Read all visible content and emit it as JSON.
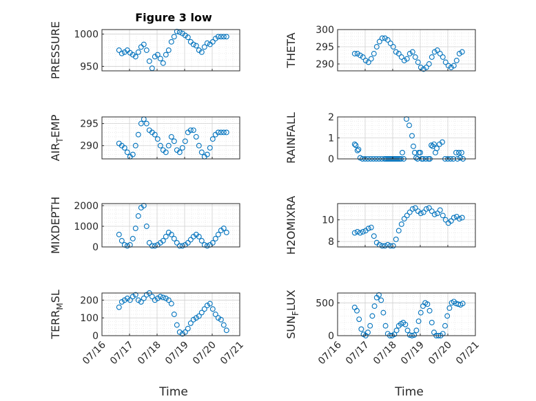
{
  "figure": {
    "title": "Figure 3 low",
    "xlabel": "Time"
  },
  "colors": {
    "marker": "#0072BD",
    "axis": "#262626",
    "grid": "#d0d0d0"
  },
  "chart_data": [
    {
      "type": "scatter",
      "ylabel": "PRESSURE",
      "ylim": [
        943,
        1007
      ],
      "yticks": [
        950,
        1000
      ],
      "xlim": [
        "07/16",
        "07/21"
      ],
      "xticks": [
        "07/16",
        "07/17",
        "07/18",
        "07/19",
        "07/20",
        "07/21"
      ],
      "grid": true,
      "x": [
        16.62,
        16.72,
        16.82,
        16.92,
        17.02,
        17.12,
        17.22,
        17.32,
        17.42,
        17.52,
        17.62,
        17.72,
        17.82,
        17.92,
        18.02,
        18.12,
        18.22,
        18.32,
        18.42,
        18.52,
        18.62,
        18.72,
        18.82,
        18.92,
        19.02,
        19.12,
        19.22,
        19.32,
        19.42,
        19.52,
        19.62,
        19.72,
        19.82,
        19.92,
        20.02,
        20.12,
        20.22,
        20.32,
        20.42,
        20.52
      ],
      "y": [
        975,
        970,
        972,
        975,
        971,
        968,
        965,
        972,
        980,
        984,
        975,
        958,
        947,
        965,
        968,
        962,
        955,
        968,
        975,
        988,
        996,
        1004,
        1003,
        1001,
        998,
        995,
        988,
        984,
        982,
        975,
        972,
        980,
        986,
        984,
        988,
        993,
        996,
        996,
        996,
        996
      ]
    },
    {
      "type": "scatter",
      "ylabel": "THETA",
      "ylim": [
        288,
        300
      ],
      "yticks": [
        290,
        295,
        300
      ],
      "xlim": [
        "07/16",
        "07/21"
      ],
      "xticks": [
        "07/16",
        "07/17",
        "07/18",
        "07/19",
        "07/20",
        "07/21"
      ],
      "grid": true,
      "x": [
        16.62,
        16.72,
        16.82,
        16.92,
        17.02,
        17.12,
        17.22,
        17.32,
        17.42,
        17.52,
        17.62,
        17.72,
        17.82,
        17.92,
        18.02,
        18.12,
        18.22,
        18.32,
        18.42,
        18.52,
        18.62,
        18.72,
        18.82,
        18.92,
        19.02,
        19.12,
        19.22,
        19.32,
        19.42,
        19.52,
        19.62,
        19.72,
        19.82,
        19.92,
        20.02,
        20.12,
        20.22,
        20.32,
        20.42,
        20.52
      ],
      "y": [
        293,
        293,
        292.5,
        292,
        291,
        290.5,
        291.5,
        293,
        295,
        296.5,
        297.5,
        297.5,
        297,
        296,
        295,
        293.5,
        293,
        292,
        291,
        291.5,
        293,
        293.5,
        292,
        290.5,
        289,
        288.5,
        289,
        290,
        292,
        293.5,
        294,
        293,
        292,
        290.5,
        289.5,
        289,
        289.5,
        291,
        293,
        293.5
      ]
    },
    {
      "type": "scatter",
      "ylabel": "AIR_TEMP",
      "ylim": [
        287,
        296.5
      ],
      "yticks": [
        290,
        295
      ],
      "xlim": [
        "07/16",
        "07/21"
      ],
      "xticks": [
        "07/16",
        "07/17",
        "07/18",
        "07/19",
        "07/20",
        "07/21"
      ],
      "grid": true,
      "x": [
        16.62,
        16.72,
        16.82,
        16.92,
        17.02,
        17.12,
        17.22,
        17.32,
        17.42,
        17.52,
        17.62,
        17.72,
        17.82,
        17.92,
        18.02,
        18.12,
        18.22,
        18.32,
        18.42,
        18.52,
        18.62,
        18.72,
        18.82,
        18.92,
        19.02,
        19.12,
        19.22,
        19.32,
        19.42,
        19.52,
        19.62,
        19.72,
        19.82,
        19.92,
        20.02,
        20.12,
        20.22,
        20.32,
        20.42,
        20.52
      ],
      "y": [
        290.5,
        290,
        289.5,
        288.5,
        287.5,
        288,
        290,
        292.5,
        295,
        296,
        295,
        293.5,
        293,
        292.5,
        291.5,
        290,
        289,
        288.5,
        290,
        292,
        291,
        289,
        288.5,
        289.5,
        291,
        293,
        293.5,
        293.5,
        292,
        290,
        288.5,
        287.5,
        288,
        289.5,
        291.5,
        292.5,
        293,
        293,
        293,
        293
      ]
    },
    {
      "type": "scatter",
      "ylabel": "RAINFALL",
      "ylim": [
        0,
        2
      ],
      "yticks": [
        0,
        1,
        2
      ],
      "xlim": [
        "07/16",
        "07/21"
      ],
      "xticks": [
        "07/16",
        "07/17",
        "07/18",
        "07/19",
        "07/20",
        "07/21"
      ],
      "grid": true,
      "x": [
        16.62,
        16.66,
        16.72,
        16.76,
        16.82,
        16.9,
        17.0,
        17.1,
        17.2,
        17.3,
        17.4,
        17.5,
        17.6,
        17.7,
        17.75,
        17.8,
        17.85,
        17.9,
        17.95,
        18.0,
        18.05,
        18.1,
        18.15,
        18.2,
        18.25,
        18.3,
        18.35,
        18.4,
        18.5,
        18.6,
        18.7,
        18.75,
        18.8,
        18.85,
        18.9,
        18.95,
        19.0,
        19.05,
        19.1,
        19.2,
        19.3,
        19.35,
        19.4,
        19.45,
        19.5,
        19.55,
        19.6,
        19.7,
        19.8,
        19.9,
        20.0,
        20.1,
        20.2,
        20.3,
        20.35,
        20.4,
        20.45,
        20.5,
        20.55
      ],
      "y": [
        0.7,
        0.65,
        0.4,
        0.45,
        0.05,
        0,
        0,
        0,
        0,
        0,
        0,
        0,
        0,
        0,
        0,
        0,
        0,
        0,
        0,
        0,
        0,
        0,
        0,
        0,
        0,
        0,
        0.3,
        0,
        1.9,
        1.6,
        1.1,
        0.6,
        0.3,
        0.05,
        0,
        0.3,
        0.3,
        0,
        0,
        0,
        0,
        0,
        0.65,
        0.6,
        0.7,
        0.3,
        0.5,
        0.7,
        0.8,
        0,
        0,
        0,
        0,
        0.3,
        0,
        0.3,
        0.05,
        0.3,
        0
      ]
    },
    {
      "type": "scatter",
      "ylabel": "MIXDEPTH",
      "ylim": [
        0,
        2100
      ],
      "yticks": [
        0,
        1000,
        2000
      ],
      "xlim": [
        "07/16",
        "07/21"
      ],
      "xticks": [
        "07/16",
        "07/17",
        "07/18",
        "07/19",
        "07/20",
        "07/21"
      ],
      "grid": true,
      "x": [
        16.62,
        16.72,
        16.82,
        16.92,
        17.02,
        17.12,
        17.22,
        17.32,
        17.42,
        17.52,
        17.62,
        17.72,
        17.82,
        17.92,
        18.02,
        18.12,
        18.22,
        18.32,
        18.42,
        18.52,
        18.62,
        18.72,
        18.82,
        18.92,
        19.02,
        19.12,
        19.22,
        19.32,
        19.42,
        19.52,
        19.62,
        19.72,
        19.82,
        19.92,
        20.02,
        20.12,
        20.22,
        20.32,
        20.42,
        20.52
      ],
      "y": [
        600,
        300,
        100,
        50,
        100,
        400,
        900,
        1500,
        1900,
        2000,
        1000,
        200,
        50,
        50,
        100,
        200,
        300,
        500,
        700,
        600,
        400,
        200,
        50,
        50,
        100,
        200,
        350,
        500,
        600,
        500,
        300,
        100,
        50,
        100,
        200,
        400,
        600,
        800,
        900,
        700
      ]
    },
    {
      "type": "scatter",
      "ylabel": "H2OMIXRA",
      "ylim": [
        7.5,
        11.5
      ],
      "yticks": [
        8,
        10
      ],
      "xlim": [
        "07/16",
        "07/21"
      ],
      "xticks": [
        "07/16",
        "07/17",
        "07/18",
        "07/19",
        "07/20",
        "07/21"
      ],
      "grid": true,
      "x": [
        16.62,
        16.72,
        16.82,
        16.92,
        17.02,
        17.12,
        17.22,
        17.32,
        17.42,
        17.52,
        17.62,
        17.72,
        17.82,
        17.92,
        18.02,
        18.12,
        18.22,
        18.32,
        18.42,
        18.52,
        18.62,
        18.72,
        18.82,
        18.92,
        19.02,
        19.12,
        19.22,
        19.32,
        19.42,
        19.52,
        19.62,
        19.72,
        19.82,
        19.92,
        20.02,
        20.12,
        20.22,
        20.32,
        20.42,
        20.52
      ],
      "y": [
        8.8,
        8.9,
        8.8,
        8.9,
        9.0,
        9.2,
        9.3,
        8.5,
        7.9,
        7.7,
        7.6,
        7.6,
        7.7,
        7.6,
        7.6,
        8.2,
        9.0,
        9.6,
        10.1,
        10.4,
        10.7,
        11.0,
        11.1,
        10.8,
        10.6,
        10.7,
        11.0,
        11.1,
        10.8,
        10.5,
        10.6,
        10.9,
        10.4,
        10.0,
        9.7,
        9.9,
        10.2,
        10.3,
        10.1,
        10.2
      ]
    },
    {
      "type": "scatter",
      "ylabel": "TERR_MSL",
      "ylim": [
        0,
        240
      ],
      "yticks": [
        0,
        100,
        200
      ],
      "xlim": [
        "07/16",
        "07/21"
      ],
      "xticks": [
        "07/16",
        "07/17",
        "07/18",
        "07/19",
        "07/20",
        "07/21"
      ],
      "grid": true,
      "x": [
        16.62,
        16.72,
        16.82,
        16.92,
        17.02,
        17.12,
        17.22,
        17.32,
        17.42,
        17.52,
        17.62,
        17.72,
        17.82,
        17.92,
        18.02,
        18.12,
        18.22,
        18.32,
        18.42,
        18.52,
        18.62,
        18.72,
        18.82,
        18.92,
        19.02,
        19.12,
        19.22,
        19.32,
        19.42,
        19.52,
        19.62,
        19.72,
        19.82,
        19.92,
        20.02,
        20.12,
        20.22,
        20.32,
        20.42,
        20.52
      ],
      "y": [
        160,
        190,
        200,
        210,
        200,
        220,
        230,
        200,
        190,
        210,
        230,
        240,
        220,
        200,
        210,
        220,
        215,
        210,
        200,
        180,
        120,
        60,
        20,
        10,
        20,
        40,
        70,
        90,
        100,
        110,
        130,
        150,
        170,
        180,
        150,
        120,
        100,
        90,
        60,
        30
      ]
    },
    {
      "type": "scatter",
      "ylabel": "SUN_FLUX",
      "ylim": [
        0,
        650
      ],
      "yticks": [
        0,
        500
      ],
      "xlim": [
        "07/16",
        "07/21"
      ],
      "xticks": [
        "07/16",
        "07/17",
        "07/18",
        "07/19",
        "07/20",
        "07/21"
      ],
      "grid": true,
      "x": [
        16.62,
        16.7,
        16.78,
        16.86,
        16.94,
        17.02,
        17.1,
        17.18,
        17.26,
        17.34,
        17.42,
        17.5,
        17.58,
        17.66,
        17.74,
        17.82,
        17.9,
        17.98,
        18.06,
        18.14,
        18.22,
        18.3,
        18.38,
        18.46,
        18.54,
        18.62,
        18.7,
        18.78,
        18.86,
        18.94,
        19.02,
        19.1,
        19.18,
        19.26,
        19.34,
        19.42,
        19.5,
        19.58,
        19.66,
        19.74,
        19.82,
        19.9,
        19.98,
        20.06,
        20.14,
        20.22,
        20.3,
        20.38,
        20.46,
        20.54
      ],
      "y": [
        430,
        380,
        250,
        100,
        20,
        0,
        50,
        150,
        300,
        450,
        580,
        620,
        540,
        350,
        150,
        30,
        0,
        0,
        20,
        80,
        150,
        180,
        200,
        170,
        80,
        10,
        0,
        10,
        80,
        220,
        350,
        450,
        500,
        480,
        380,
        200,
        50,
        0,
        0,
        0,
        30,
        150,
        300,
        420,
        500,
        520,
        490,
        480,
        470,
        490
      ]
    }
  ]
}
